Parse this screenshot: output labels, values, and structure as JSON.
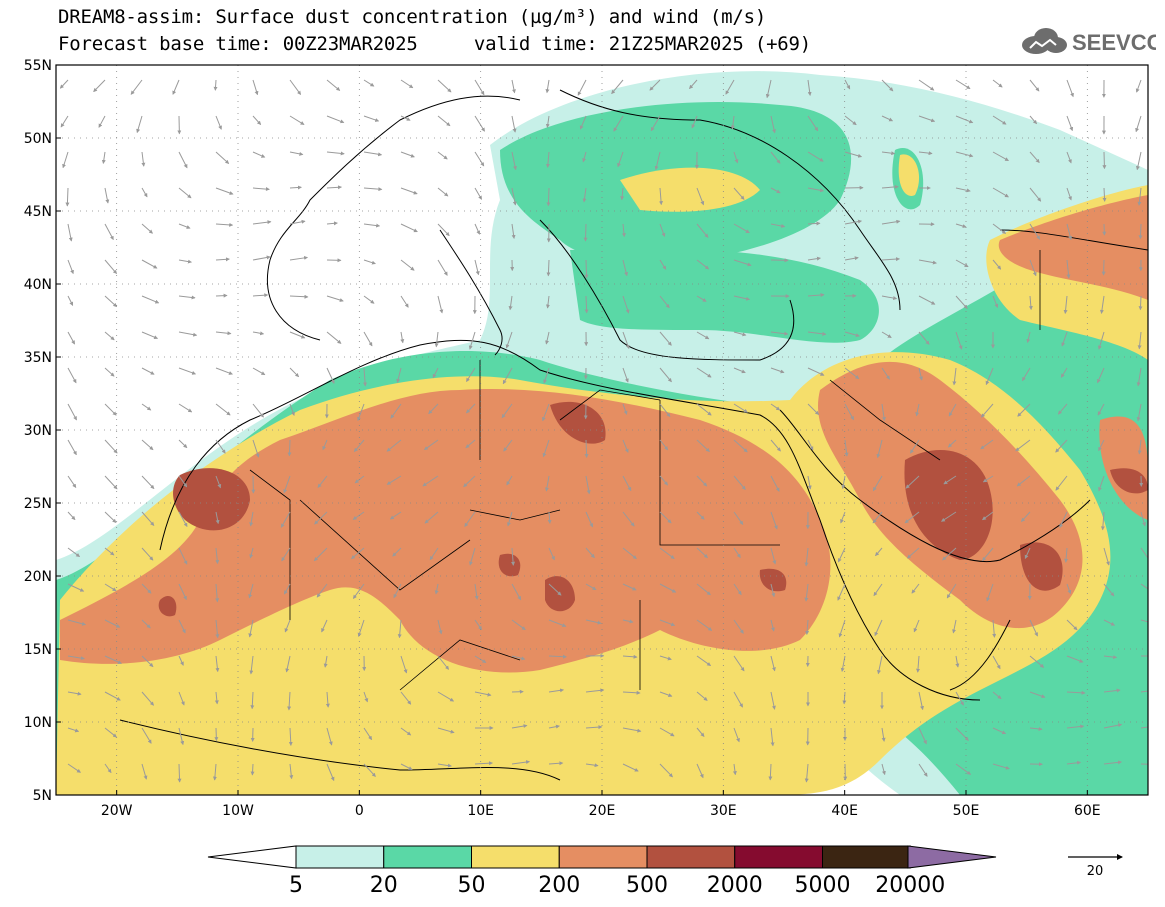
{
  "title": {
    "line1": "DREAM8-assim: Surface dust concentration (µg/m³) and wind (m/s)",
    "base_time_label": "Forecast base time: 00Z23MAR2025",
    "valid_time_label": "valid time: 21Z25MAR2025 (+69)"
  },
  "logo": {
    "text": "SEEVCCC",
    "icon": "cloud-icon"
  },
  "map": {
    "lon_range": [
      -25,
      65
    ],
    "lat_range": [
      5,
      55
    ],
    "lat_ticks": [
      "55N",
      "50N",
      "45N",
      "40N",
      "35N",
      "30N",
      "25N",
      "20N",
      "15N",
      "10N",
      "5N"
    ],
    "lon_ticks": [
      "20W",
      "10W",
      "0",
      "10E",
      "20E",
      "30E",
      "40E",
      "50E",
      "60E"
    ]
  },
  "colorbar": {
    "labels": [
      "5",
      "20",
      "50",
      "200",
      "500",
      "2000",
      "5000",
      "20000"
    ],
    "colors": [
      "#ffffff",
      "#c7f0e8",
      "#5ad8a6",
      "#f5de6b",
      "#e58e62",
      "#b2513f",
      "#850b2f",
      "#3b2512",
      "#8d6ba3"
    ]
  },
  "wind_reference": {
    "label": "20"
  }
}
